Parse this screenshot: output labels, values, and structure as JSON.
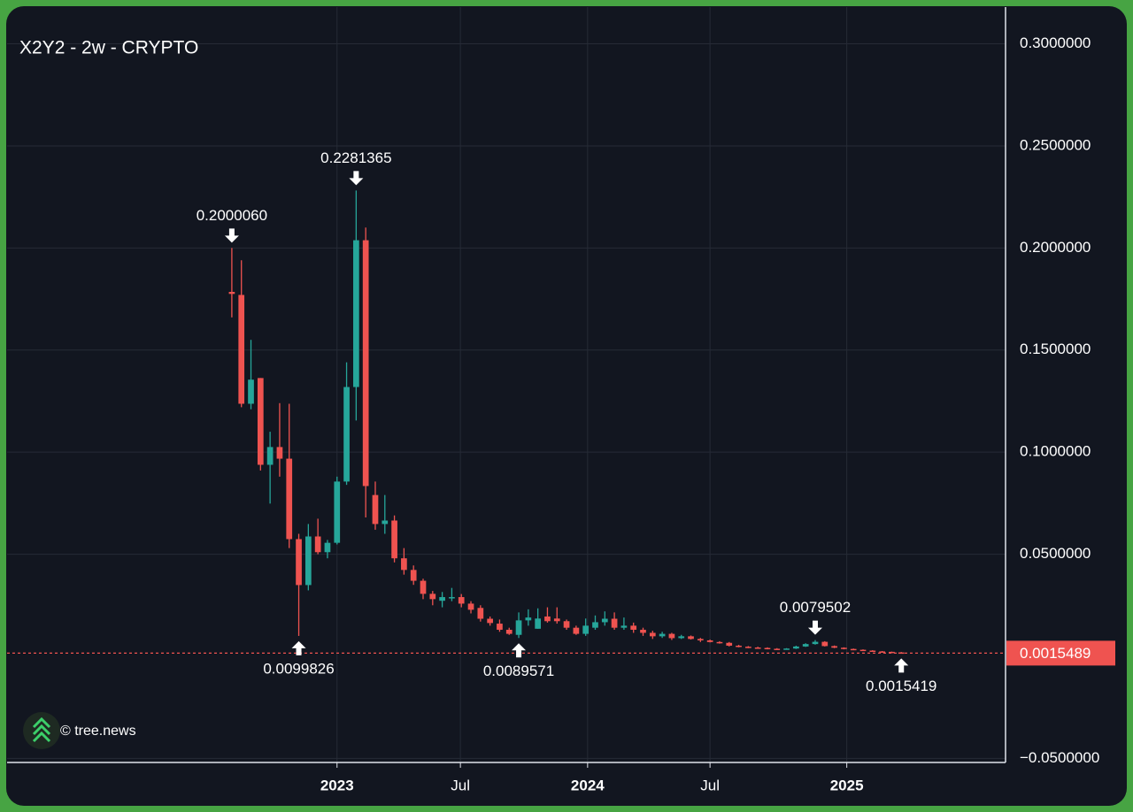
{
  "chart_data": {
    "type": "candlestick",
    "title": "X2Y2 - 2w - CRYPTO",
    "watermark": "© tree.news",
    "up_color": "#26a69a",
    "down_color": "#ef5350",
    "grid": true,
    "open": [
      0.1785,
      0.177,
      0.1237,
      0.1363,
      0.0938,
      0.1025,
      0.0968,
      0.0574,
      0.0349,
      0.0587,
      0.051,
      0.0556,
      0.0856,
      0.1319,
      0.2038,
      0.079,
      0.0648,
      0.0665,
      0.048,
      0.0423,
      0.037,
      0.0306,
      0.0272,
      0.0285,
      0.029,
      0.0258,
      0.0237,
      0.0184,
      0.016,
      0.013,
      0.0105,
      0.0176,
      0.0135,
      0.0195,
      0.0185,
      0.0172,
      0.014,
      0.011,
      0.014,
      0.0167,
      0.0184,
      0.014,
      0.015,
      0.013,
      0.0115,
      0.0098,
      0.011,
      0.0089,
      0.0098,
      0.0085,
      0.0078,
      0.007,
      0.0066,
      0.0052,
      0.0047,
      0.0043,
      0.0041,
      0.0037,
      0.0035,
      0.0038,
      0.0048,
      0.006,
      0.0071,
      0.005,
      0.0042,
      0.0036,
      0.0032,
      0.0028,
      0.0024,
      0.0022,
      0.0019
    ],
    "high": [
      0.200006,
      0.194,
      0.155,
      0.1363,
      0.11,
      0.124,
      0.1237,
      0.06,
      0.0648,
      0.0674,
      0.057,
      0.088,
      0.144,
      0.2281365,
      0.21,
      0.0856,
      0.079,
      0.069,
      0.053,
      0.0445,
      0.038,
      0.032,
      0.0315,
      0.0335,
      0.0305,
      0.027,
      0.025,
      0.0195,
      0.018,
      0.014,
      0.0215,
      0.023,
      0.0235,
      0.024,
      0.024,
      0.018,
      0.015,
      0.0185,
      0.02,
      0.022,
      0.0215,
      0.019,
      0.0165,
      0.014,
      0.0125,
      0.012,
      0.0115,
      0.0105,
      0.0102,
      0.009,
      0.0082,
      0.0074,
      0.007,
      0.0056,
      0.005,
      0.0047,
      0.0044,
      0.004,
      0.004,
      0.0052,
      0.0064,
      0.0079502,
      0.0074,
      0.0053,
      0.0044,
      0.0038,
      0.0034,
      0.003,
      0.0026,
      0.0023,
      0.0021
    ],
    "low": [
      0.166,
      0.122,
      0.121,
      0.091,
      0.0748,
      0.088,
      0.053,
      0.0099826,
      0.0323,
      0.05,
      0.048,
      0.0548,
      0.084,
      0.1155,
      0.068,
      0.062,
      0.06,
      0.046,
      0.04,
      0.035,
      0.028,
      0.025,
      0.024,
      0.027,
      0.024,
      0.021,
      0.017,
      0.015,
      0.012,
      0.0105,
      0.0089571,
      0.015,
      0.0135,
      0.0165,
      0.016,
      0.013,
      0.0105,
      0.01,
      0.013,
      0.015,
      0.013,
      0.013,
      0.0115,
      0.01,
      0.0085,
      0.009,
      0.008,
      0.0085,
      0.0082,
      0.007,
      0.0068,
      0.0062,
      0.0048,
      0.0044,
      0.004,
      0.0038,
      0.0034,
      0.0033,
      0.0033,
      0.0036,
      0.0046,
      0.0057,
      0.0048,
      0.004,
      0.0034,
      0.003,
      0.0026,
      0.0022,
      0.002,
      0.0018,
      0.0015419
    ],
    "close": [
      0.1775,
      0.1237,
      0.1355,
      0.0938,
      0.1025,
      0.0968,
      0.0574,
      0.0349,
      0.0587,
      0.051,
      0.0556,
      0.0856,
      0.1319,
      0.2038,
      0.0834,
      0.0648,
      0.0665,
      0.048,
      0.0423,
      0.037,
      0.0306,
      0.028,
      0.029,
      0.029,
      0.0258,
      0.0228,
      0.0184,
      0.0163,
      0.013,
      0.011,
      0.0176,
      0.019,
      0.0185,
      0.0172,
      0.0172,
      0.014,
      0.011,
      0.015,
      0.0167,
      0.0184,
      0.014,
      0.015,
      0.013,
      0.0115,
      0.0098,
      0.011,
      0.0089,
      0.0098,
      0.0085,
      0.0078,
      0.007,
      0.0066,
      0.0052,
      0.0047,
      0.0043,
      0.0041,
      0.0037,
      0.0035,
      0.0038,
      0.0048,
      0.006,
      0.0071,
      0.005,
      0.0042,
      0.0036,
      0.0032,
      0.0028,
      0.0024,
      0.0022,
      0.0019,
      0.0015489
    ],
    "last_price": {
      "value": 0.0015489,
      "label": "0.0015489"
    },
    "annotations": [
      {
        "x": 0,
        "value": 0.200006,
        "label": "0.2000060",
        "position": "above"
      },
      {
        "x": 13,
        "value": 0.2281365,
        "label": "0.2281365",
        "position": "above"
      },
      {
        "x": 7,
        "value": 0.0099826,
        "label": "0.0099826",
        "position": "below"
      },
      {
        "x": 30,
        "value": 0.0089571,
        "label": "0.0089571",
        "position": "below"
      },
      {
        "x": 61,
        "value": 0.0079502,
        "label": "0.0079502",
        "position": "above"
      },
      {
        "x": 70,
        "value": 0.0015419,
        "label": "0.0015419",
        "position": "below"
      }
    ],
    "xlim": [
      -23.5,
      80.9
    ],
    "xticks": [
      {
        "value": 11.0,
        "label": "2023",
        "bold": true
      },
      {
        "value": 23.9,
        "label": "Jul",
        "bold": false
      },
      {
        "value": 37.2,
        "label": "2024",
        "bold": true
      },
      {
        "value": 50.0,
        "label": "Jul",
        "bold": false
      },
      {
        "value": 64.3,
        "label": "2025",
        "bold": true
      }
    ],
    "ylim": [
      -0.052,
      0.318
    ],
    "yticks": [
      {
        "value": -0.05,
        "label": "−0.0500000"
      },
      {
        "value": 0.05,
        "label": "0.0500000"
      },
      {
        "value": 0.1,
        "label": "0.1000000"
      },
      {
        "value": 0.15,
        "label": "0.1500000"
      },
      {
        "value": 0.2,
        "label": "0.2000000"
      },
      {
        "value": 0.25,
        "label": "0.2500000"
      },
      {
        "value": 0.3,
        "label": "0.3000000"
      }
    ]
  }
}
